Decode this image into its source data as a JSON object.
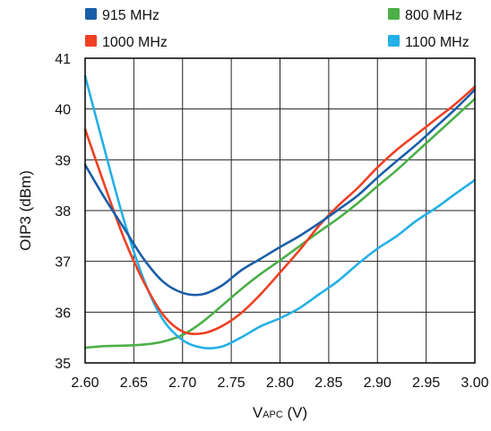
{
  "chart_data": {
    "type": "line",
    "title": "",
    "xlabel": {
      "main": "V",
      "sub": "APC",
      "unit": " (V)"
    },
    "ylabel": "OIP3 (dBm)",
    "xlim": [
      2.6,
      3.0
    ],
    "ylim": [
      35,
      41
    ],
    "x_ticks": [
      "2.60",
      "2.65",
      "2.70",
      "2.75",
      "2.80",
      "2.85",
      "2.90",
      "2.95",
      "3.00"
    ],
    "y_ticks": [
      "35",
      "36",
      "37",
      "38",
      "39",
      "40",
      "41"
    ],
    "grid": true,
    "legend_position": "top",
    "series": [
      {
        "name": "915 MHz",
        "color": "#1a5ea8",
        "x": [
          2.6,
          2.62,
          2.64,
          2.66,
          2.68,
          2.7,
          2.72,
          2.74,
          2.76,
          2.78,
          2.8,
          2.82,
          2.84,
          2.86,
          2.88,
          2.9,
          2.92,
          2.94,
          2.96,
          2.98,
          3.0
        ],
        "y": [
          38.9,
          38.25,
          37.65,
          37.05,
          36.6,
          36.38,
          36.35,
          36.52,
          36.82,
          37.05,
          37.28,
          37.5,
          37.75,
          38.02,
          38.3,
          38.65,
          38.98,
          39.3,
          39.65,
          40.0,
          40.38
        ]
      },
      {
        "name": "1000 MHz",
        "color": "#ee4022",
        "x": [
          2.6,
          2.62,
          2.64,
          2.66,
          2.68,
          2.7,
          2.72,
          2.74,
          2.76,
          2.78,
          2.8,
          2.82,
          2.84,
          2.86,
          2.88,
          2.9,
          2.92,
          2.94,
          2.96,
          2.98,
          3.0
        ],
        "y": [
          39.6,
          38.5,
          37.45,
          36.6,
          35.95,
          35.62,
          35.58,
          35.72,
          35.98,
          36.35,
          36.78,
          37.22,
          37.7,
          38.1,
          38.45,
          38.85,
          39.2,
          39.5,
          39.8,
          40.1,
          40.44
        ]
      },
      {
        "name": "800 MHz",
        "color": "#4caf48",
        "x": [
          2.6,
          2.62,
          2.64,
          2.66,
          2.68,
          2.7,
          2.72,
          2.74,
          2.76,
          2.78,
          2.8,
          2.82,
          2.84,
          2.86,
          2.88,
          2.9,
          2.92,
          2.94,
          2.96,
          2.98,
          3.0
        ],
        "y": [
          35.3,
          35.33,
          35.34,
          35.36,
          35.42,
          35.55,
          35.8,
          36.12,
          36.45,
          36.75,
          37.02,
          37.3,
          37.58,
          37.85,
          38.15,
          38.48,
          38.8,
          39.15,
          39.5,
          39.85,
          40.2
        ]
      },
      {
        "name": "1100 MHz",
        "color": "#23b0e6",
        "x": [
          2.6,
          2.62,
          2.64,
          2.66,
          2.68,
          2.7,
          2.72,
          2.74,
          2.76,
          2.78,
          2.8,
          2.82,
          2.84,
          2.86,
          2.88,
          2.9,
          2.92,
          2.94,
          2.96,
          2.98,
          3.0
        ],
        "y": [
          40.65,
          39.2,
          37.8,
          36.65,
          35.85,
          35.45,
          35.3,
          35.32,
          35.5,
          35.72,
          35.88,
          36.08,
          36.35,
          36.62,
          36.95,
          37.25,
          37.5,
          37.8,
          38.05,
          38.33,
          38.6
        ]
      }
    ]
  }
}
